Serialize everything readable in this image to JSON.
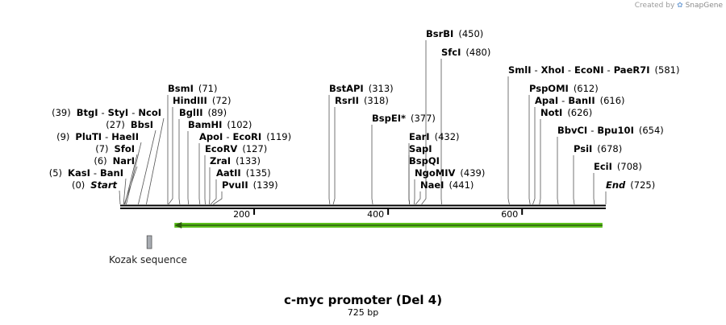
{
  "credit": {
    "prefix": "Created by",
    "brand": "SnapGene"
  },
  "title": "c-myc promoter (Del 4)",
  "length_label": "725 bp",
  "sequence_length": 725,
  "ruler_ticks": [
    "200",
    "400",
    "600"
  ],
  "features": [
    {
      "name": "Kozak sequence",
      "start": 40,
      "end": 47,
      "color": "#a8acb2"
    },
    {
      "name": "arrow",
      "start": 81,
      "end": 720,
      "direction": "reverse",
      "color": "#5bbf1c"
    }
  ],
  "sites": [
    {
      "label_left": "(0)",
      "names": [
        "Start"
      ],
      "style": "italic",
      "position": 0
    },
    {
      "label_left": "(5)",
      "names": [
        "KasI",
        "BanI"
      ],
      "position": 5
    },
    {
      "label_left": "(6)",
      "names": [
        "NarI"
      ],
      "position": 6
    },
    {
      "label_left": "(7)",
      "names": [
        "SfoI"
      ],
      "position": 7
    },
    {
      "label_left": "(9)",
      "names": [
        "PluTI",
        "HaeII"
      ],
      "position": 9
    },
    {
      "label_left": "(27)",
      "names": [
        "BbsI"
      ],
      "position": 27
    },
    {
      "label_left": "(39)",
      "names": [
        "BtgI",
        "StyI",
        "NcoI"
      ],
      "position": 39
    },
    {
      "names": [
        "BsmI"
      ],
      "label_right": "(71)",
      "position": 71
    },
    {
      "names": [
        "HindIII"
      ],
      "label_right": "(72)",
      "position": 72
    },
    {
      "names": [
        "BglII"
      ],
      "label_right": "(89)",
      "position": 89
    },
    {
      "names": [
        "BamHI"
      ],
      "label_right": "(102)",
      "position": 102
    },
    {
      "names": [
        "ApoI",
        "EcoRI"
      ],
      "label_right": "(119)",
      "position": 119
    },
    {
      "names": [
        "EcoRV"
      ],
      "label_right": "(127)",
      "position": 127
    },
    {
      "names": [
        "ZraI"
      ],
      "label_right": "(133)",
      "position": 133
    },
    {
      "names": [
        "AatII"
      ],
      "label_right": "(135)",
      "position": 135
    },
    {
      "names": [
        "PvuII"
      ],
      "label_right": "(139)",
      "position": 139
    },
    {
      "names": [
        "BstAPI"
      ],
      "label_right": "(313)",
      "position": 313
    },
    {
      "names": [
        "RsrII"
      ],
      "label_right": "(318)",
      "position": 318
    },
    {
      "names": [
        "BspEI"
      ],
      "marker": "*",
      "label_right": "(377)",
      "position": 377
    },
    {
      "names": [
        "EarI"
      ],
      "label_right": "(432)",
      "position": 432
    },
    {
      "names": [
        "SapI"
      ],
      "position": 432
    },
    {
      "names": [
        "BspQI"
      ],
      "position": 432
    },
    {
      "names": [
        "NgoMIV"
      ],
      "label_right": "(439)",
      "position": 439
    },
    {
      "names": [
        "NaeI"
      ],
      "label_right": "(441)",
      "position": 441
    },
    {
      "names": [
        "BsrBI"
      ],
      "label_right": "(450)",
      "position": 450
    },
    {
      "names": [
        "SfcI"
      ],
      "label_right": "(480)",
      "position": 480
    },
    {
      "names": [
        "SmlI",
        "XhoI",
        "EcoNI",
        "PaeR7I"
      ],
      "label_right": "(581)",
      "position": 581
    },
    {
      "names": [
        "PspOMI"
      ],
      "label_right": "(612)",
      "position": 612
    },
    {
      "names": [
        "ApaI",
        "BanII"
      ],
      "label_right": "(616)",
      "position": 616
    },
    {
      "names": [
        "NotI"
      ],
      "label_right": "(626)",
      "position": 626
    },
    {
      "names": [
        "BbvCI",
        "Bpu10I"
      ],
      "label_right": "(654)",
      "position": 654
    },
    {
      "names": [
        "PsiI"
      ],
      "label_right": "(678)",
      "position": 678
    },
    {
      "names": [
        "EciI"
      ],
      "label_right": "(708)",
      "position": 708
    },
    {
      "names": [
        "End"
      ],
      "style": "italic",
      "label_right": "(725)",
      "position": 725
    }
  ]
}
